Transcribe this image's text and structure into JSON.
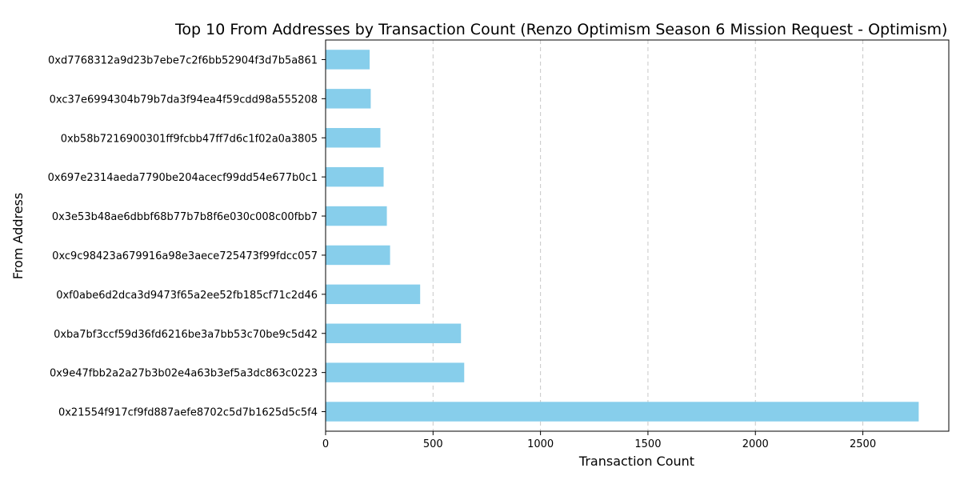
{
  "chart_data": {
    "type": "bar",
    "orientation": "horizontal",
    "title": "Top 10 From Addresses by Transaction Count (Renzo Optimism Season 6 Mission Request - Optimism)",
    "xlabel": "Transaction Count",
    "ylabel": "From Address",
    "categories": [
      "0x21554f917cf9fd887aefe8702c5d7b1625d5c5f4",
      "0x9e47fbb2a2a27b3b02e4a63b3ef5a3dc863c0223",
      "0xba7bf3ccf59d36fd6216be3a7bb53c70be9c5d42",
      "0xf0abe6d2dca3d9473f65a2ee52fb185cf71c2d46",
      "0xc9c98423a679916a98e3aece725473f99fdcc057",
      "0x3e53b48ae6dbbf68b77b7b8f6e030c008c00fbb7",
      "0x697e2314aeda7790be204acecf99dd54e677b0c1",
      "0xb58b7216900301ff9fcbb47ff7d6c1f02a0a3805",
      "0xc37e6994304b79b7da3f94ea4f59cdd98a555208",
      "0xd7768312a9d23b7ebe7c2f6bb52904f3d7b5a861"
    ],
    "values": [
      2760,
      645,
      630,
      440,
      300,
      285,
      270,
      255,
      210,
      205
    ],
    "xlim": [
      0,
      2900
    ],
    "xticks": [
      0,
      500,
      1000,
      1500,
      2000,
      2500
    ],
    "grid": "x-dashed",
    "bar_color": "#87ceeb",
    "grid_color": "#c8c8c8"
  }
}
